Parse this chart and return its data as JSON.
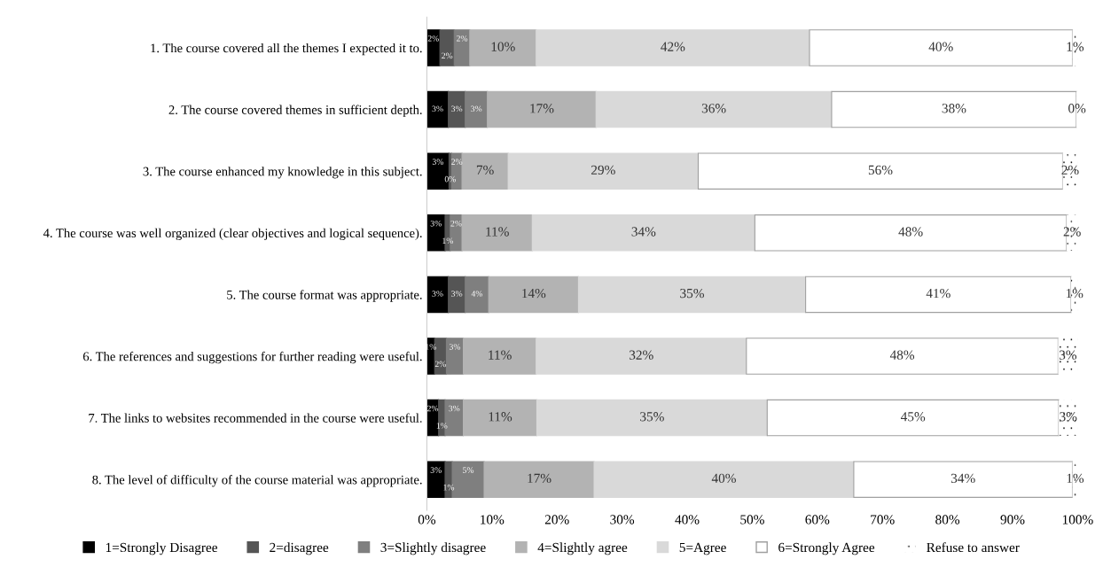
{
  "chart_data": {
    "type": "bar",
    "orientation": "horizontal",
    "stacked": true,
    "categories": [
      "1. The course covered all the themes I expected it to.",
      "2. The course covered themes in sufficient depth.",
      "3. The course enhanced my knowledge in this subject.",
      "4. The course was well organized (clear objectives and logical sequence).",
      "5. The course format was appropriate.",
      "6. The references and suggestions for further reading were useful.",
      "7. The links to websites recommended in the course were useful.",
      "8. The level of difficulty of the course material was appropriate."
    ],
    "series": [
      {
        "name": "1=Strongly Disagree",
        "color": "#000000",
        "values": [
          2.0,
          3.3,
          3.4,
          2.8,
          3.3,
          1.2,
          1.8,
          2.8
        ],
        "value_labels": [
          "2%",
          "3%",
          "3%",
          "3%",
          "3%",
          "1%",
          "2%",
          "3%"
        ]
      },
      {
        "name": "2=disagree",
        "color": "#555555",
        "values": [
          2.2,
          2.6,
          0.4,
          0.8,
          2.6,
          1.8,
          1.0,
          1.1
        ],
        "value_labels": [
          "2%",
          "3%",
          "0%",
          "1%",
          "3%",
          "2%",
          "1%",
          "1%"
        ]
      },
      {
        "name": "3=Slightly disagree",
        "color": "#7f7f7f",
        "values": [
          2.4,
          3.4,
          1.6,
          1.8,
          3.6,
          2.6,
          2.8,
          4.9
        ],
        "value_labels": [
          "2%",
          "3%",
          "2%",
          "2%",
          "4%",
          "3%",
          "3%",
          "5%"
        ]
      },
      {
        "name": "4=Slightly agree",
        "color": "#b3b3b3",
        "values": [
          10.2,
          16.7,
          7.1,
          10.8,
          13.8,
          11.2,
          11.3,
          16.9
        ],
        "value_labels": [
          "10%",
          "17%",
          "7%",
          "11%",
          "14%",
          "11%",
          "11%",
          "17%"
        ]
      },
      {
        "name": "5=Agree",
        "color": "#d9d9d9",
        "values": [
          42.0,
          36.2,
          29.2,
          34.2,
          34.9,
          32.3,
          35.4,
          39.9
        ],
        "value_labels": [
          "42%",
          "36%",
          "29%",
          "34%",
          "35%",
          "32%",
          "35%",
          "40%"
        ]
      },
      {
        "name": "6=Strongly Agree",
        "color": "#ffffff",
        "values": [
          40.4,
          37.6,
          56.0,
          47.9,
          40.8,
          47.9,
          44.8,
          33.6
        ],
        "value_labels": [
          "40%",
          "38%",
          "56%",
          "48%",
          "41%",
          "48%",
          "45%",
          "34%"
        ]
      },
      {
        "name": "Refuse to answer",
        "color": "#ffffff",
        "values": [
          0.8,
          0.2,
          2.3,
          1.7,
          1.0,
          3.0,
          2.9,
          0.8
        ],
        "value_labels": [
          "1%",
          "0%",
          "2%",
          "2%",
          "1%",
          "3%",
          "3%",
          "1%"
        ]
      }
    ],
    "xlim": [
      0,
      100
    ],
    "xticks": [
      {
        "value": 0,
        "label": "0%"
      },
      {
        "value": 10,
        "label": "10%"
      },
      {
        "value": 20,
        "label": "20%"
      },
      {
        "value": 30,
        "label": "30%"
      },
      {
        "value": 40,
        "label": "40%"
      },
      {
        "value": 50,
        "label": "50%"
      },
      {
        "value": 60,
        "label": "60%"
      },
      {
        "value": 70,
        "label": "70%"
      },
      {
        "value": 80,
        "label": "80%"
      },
      {
        "value": 90,
        "label": "90%"
      },
      {
        "value": 100,
        "label": "100%"
      }
    ],
    "grid": false,
    "legend": "bottom"
  }
}
